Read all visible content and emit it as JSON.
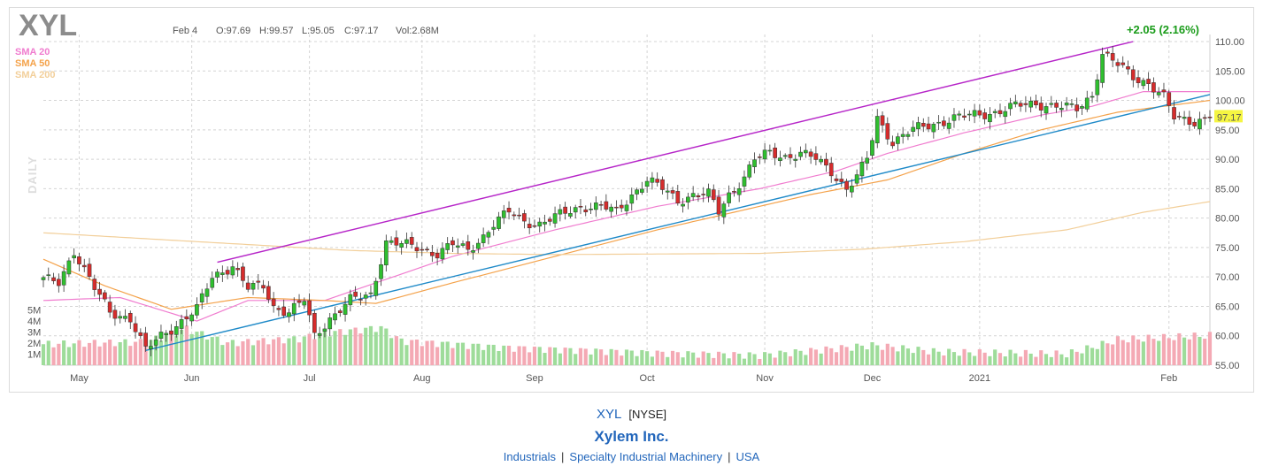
{
  "header": {
    "ticker": "XYL",
    "date": "Feb 4",
    "open": "O:97.69",
    "high": "H:99.57",
    "low": "L:95.05",
    "close": "C:97.17",
    "volume": "Vol:2.68M",
    "change": "+2.05 (2.16%)",
    "period_label": "DAILY"
  },
  "legend": [
    {
      "label": "SMA 20",
      "color": "#f07ccf"
    },
    {
      "label": "SMA 50",
      "color": "#f4a24a"
    },
    {
      "label": "SMA 200",
      "color": "#f2cf9a"
    }
  ],
  "colors": {
    "up": "#2fbf2f",
    "down": "#d62c2c",
    "vol_up": "#9edc9a",
    "vol_down": "#f4a9b4",
    "channel": "#b625c8",
    "trendline": "#1f8ac8",
    "last_price_bg": "#f5f542"
  },
  "footer": {
    "symbol": "XYL",
    "exchange": "[NYSE]",
    "company": "Xylem Inc.",
    "sector": "Industrials",
    "industry": "Specialty Industrial Machinery",
    "country": "USA"
  },
  "chart_data": {
    "type": "candlestick",
    "title": "XYL",
    "period": "DAILY",
    "x_labels": [
      "May",
      "Jun",
      "Jul",
      "Aug",
      "Sep",
      "Oct",
      "Nov",
      "Dec",
      "2021",
      "Feb"
    ],
    "y_ticks": [
      55,
      60,
      65,
      70,
      75,
      80,
      85,
      90,
      95,
      100,
      105,
      110
    ],
    "volume_ticks": [
      "1M",
      "2M",
      "3M",
      "4M",
      "5M"
    ],
    "ylim": [
      55,
      110
    ],
    "last_price": "97.17",
    "grid": true,
    "legend_position": "top-left",
    "price_anchors": [
      [
        0,
        69.5
      ],
      [
        3,
        69
      ],
      [
        6,
        74.5
      ],
      [
        10,
        68
      ],
      [
        13,
        64
      ],
      [
        17,
        63
      ],
      [
        20,
        57.5
      ],
      [
        23,
        60
      ],
      [
        27,
        62.5
      ],
      [
        30,
        64.5
      ],
      [
        33,
        70
      ],
      [
        37,
        72
      ],
      [
        40,
        68
      ],
      [
        43,
        68.5
      ],
      [
        45,
        65
      ],
      [
        48,
        64
      ],
      [
        51,
        66
      ],
      [
        53,
        60
      ],
      [
        56,
        63
      ],
      [
        60,
        66
      ],
      [
        64,
        67
      ],
      [
        67,
        76
      ],
      [
        70,
        75.5
      ],
      [
        73,
        75
      ],
      [
        77,
        74
      ],
      [
        80,
        75.5
      ],
      [
        83,
        74.5
      ],
      [
        86,
        77
      ],
      [
        88,
        79
      ],
      [
        91,
        81
      ],
      [
        94,
        79.5
      ],
      [
        97,
        79
      ],
      [
        101,
        80.5
      ],
      [
        105,
        82
      ],
      [
        109,
        82
      ],
      [
        112,
        81
      ],
      [
        115,
        84
      ],
      [
        118,
        86.5
      ],
      [
        121,
        85
      ],
      [
        124,
        83
      ],
      [
        127,
        84
      ],
      [
        130,
        84
      ],
      [
        132,
        81
      ],
      [
        134,
        84
      ],
      [
        137,
        87
      ],
      [
        139,
        90
      ],
      [
        142,
        91
      ],
      [
        145,
        90.5
      ],
      [
        148,
        91
      ],
      [
        151,
        90
      ],
      [
        154,
        88
      ],
      [
        157,
        85
      ],
      [
        159,
        87
      ],
      [
        161,
        90
      ],
      [
        163,
        97
      ],
      [
        166,
        93
      ],
      [
        170,
        95
      ],
      [
        174,
        96
      ],
      [
        178,
        97
      ],
      [
        182,
        97.5
      ],
      [
        186,
        98
      ],
      [
        190,
        99
      ],
      [
        194,
        99.5
      ],
      [
        198,
        99
      ],
      [
        202,
        98.5
      ],
      [
        205,
        101
      ],
      [
        207,
        108
      ],
      [
        210,
        106
      ],
      [
        213,
        104
      ],
      [
        216,
        103
      ],
      [
        219,
        100.5
      ],
      [
        221,
        97
      ],
      [
        225,
        96.5
      ],
      [
        228,
        97.17
      ]
    ],
    "volume_anchors": [
      [
        0,
        1.9
      ],
      [
        20,
        2.1
      ],
      [
        28,
        3.3
      ],
      [
        36,
        2.0
      ],
      [
        50,
        2.4
      ],
      [
        55,
        2.9
      ],
      [
        66,
        3.4
      ],
      [
        70,
        2.2
      ],
      [
        90,
        1.6
      ],
      [
        120,
        1.1
      ],
      [
        140,
        0.9
      ],
      [
        150,
        1.3
      ],
      [
        162,
        1.8
      ],
      [
        175,
        1.2
      ],
      [
        200,
        1.0
      ],
      [
        205,
        1.6
      ],
      [
        210,
        2.3
      ],
      [
        228,
        2.68
      ]
    ],
    "channel_top": {
      "from": [
        34,
        72.5
      ],
      "to": [
        213,
        110
      ]
    },
    "trendline": {
      "from": [
        20,
        57.5
      ],
      "to": [
        228,
        101
      ]
    },
    "series": [
      {
        "name": "SMA 20",
        "anchors": [
          [
            0,
            66
          ],
          [
            15,
            66.5
          ],
          [
            30,
            62.5
          ],
          [
            40,
            66
          ],
          [
            55,
            66
          ],
          [
            65,
            69
          ],
          [
            80,
            73.5
          ],
          [
            100,
            78
          ],
          [
            120,
            82
          ],
          [
            140,
            85
          ],
          [
            155,
            88
          ],
          [
            165,
            91
          ],
          [
            180,
            94.5
          ],
          [
            195,
            97.5
          ],
          [
            205,
            99
          ],
          [
            215,
            101.5
          ],
          [
            228,
            101.5
          ]
        ]
      },
      {
        "name": "SMA 50",
        "anchors": [
          [
            0,
            73
          ],
          [
            12,
            68.5
          ],
          [
            25,
            64.5
          ],
          [
            40,
            66.5
          ],
          [
            55,
            66
          ],
          [
            65,
            65.5
          ],
          [
            80,
            69
          ],
          [
            100,
            73.5
          ],
          [
            120,
            78
          ],
          [
            135,
            81
          ],
          [
            150,
            84
          ],
          [
            165,
            86.5
          ],
          [
            180,
            91
          ],
          [
            195,
            95
          ],
          [
            210,
            98
          ],
          [
            228,
            100
          ]
        ]
      },
      {
        "name": "SMA 200",
        "anchors": [
          [
            0,
            77.5
          ],
          [
            20,
            76.5
          ],
          [
            40,
            75.5
          ],
          [
            60,
            74.5
          ],
          [
            80,
            74
          ],
          [
            100,
            73.8
          ],
          [
            120,
            73.9
          ],
          [
            140,
            74
          ],
          [
            160,
            74.7
          ],
          [
            180,
            76
          ],
          [
            200,
            78
          ],
          [
            215,
            81
          ],
          [
            228,
            82.8
          ]
        ]
      }
    ]
  }
}
